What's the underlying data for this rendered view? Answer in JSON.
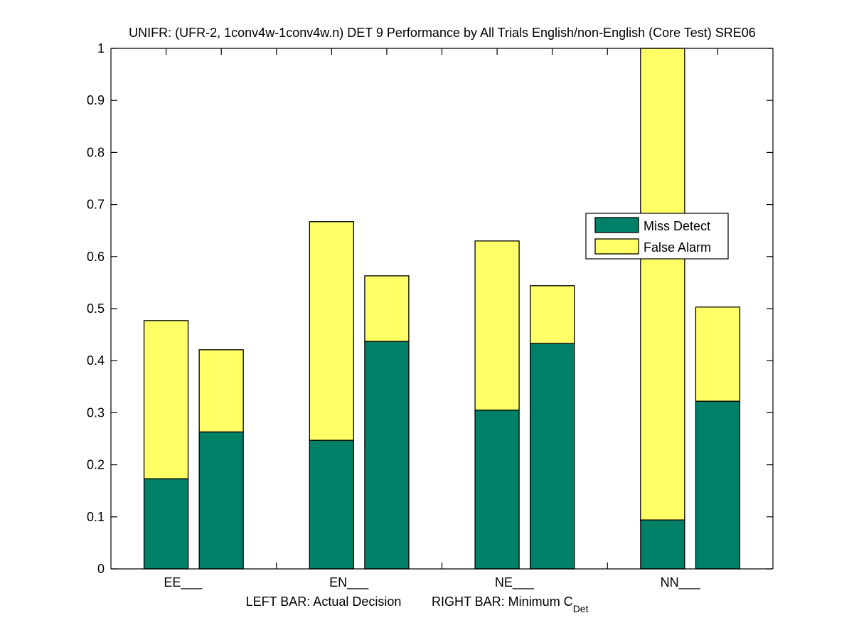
{
  "chart_data": {
    "type": "bar",
    "stacked": true,
    "title": "UNIFR: (UFR-2, 1conv4w-1conv4w.n) DET 9 Performance by All Trials English/non-English (Core Test) SRE06",
    "xlabel": {
      "left": "LEFT BAR: Actual Decision",
      "right_prefix": "RIGHT BAR: Minimum C",
      "right_subscript": "Det"
    },
    "ylabel": "",
    "ylim": [
      0,
      1
    ],
    "xlim": [
      0,
      12
    ],
    "yticks": [
      "0",
      "0.1",
      "0.2",
      "0.3",
      "0.4",
      "0.5",
      "0.6",
      "0.7",
      "0.8",
      "0.9",
      "1"
    ],
    "ytick_values": [
      0,
      0.1,
      0.2,
      0.3,
      0.4,
      0.5,
      0.6,
      0.7,
      0.8,
      0.9,
      1.0
    ],
    "categories": [
      "EE___",
      "EN___",
      "NE___",
      "NN___"
    ],
    "category_x": [
      1.5,
      4.5,
      7.5,
      10.5
    ],
    "bars": [
      {
        "category": "EE___",
        "which": "Actual Decision",
        "x": 1,
        "miss_detect": 0.173,
        "false_alarm": 0.304
      },
      {
        "category": "EE___",
        "which": "Minimum CDet",
        "x": 2,
        "miss_detect": 0.263,
        "false_alarm": 0.158
      },
      {
        "category": "EN___",
        "which": "Actual Decision",
        "x": 4,
        "miss_detect": 0.247,
        "false_alarm": 0.42
      },
      {
        "category": "EN___",
        "which": "Minimum CDet",
        "x": 5,
        "miss_detect": 0.437,
        "false_alarm": 0.126
      },
      {
        "category": "NE___",
        "which": "Actual Decision",
        "x": 7,
        "miss_detect": 0.305,
        "false_alarm": 0.325
      },
      {
        "category": "NE___",
        "which": "Minimum CDet",
        "x": 8,
        "miss_detect": 0.433,
        "false_alarm": 0.111
      },
      {
        "category": "NN___",
        "which": "Actual Decision",
        "x": 10,
        "miss_detect": 0.094,
        "false_alarm": 0.906
      },
      {
        "category": "NN___",
        "which": "Minimum CDet",
        "x": 11,
        "miss_detect": 0.322,
        "false_alarm": 0.181
      }
    ],
    "series": [
      {
        "name": "Miss Detect",
        "color": "#008066"
      },
      {
        "name": "False Alarm",
        "color": "#FFFF66"
      }
    ],
    "legend": {
      "entries": [
        "Miss Detect",
        "False Alarm"
      ],
      "placement": "right-center"
    },
    "grid": false,
    "xtick_values": [
      0,
      1,
      2,
      3,
      4,
      5,
      6,
      7,
      8,
      9,
      10,
      11,
      12
    ]
  }
}
